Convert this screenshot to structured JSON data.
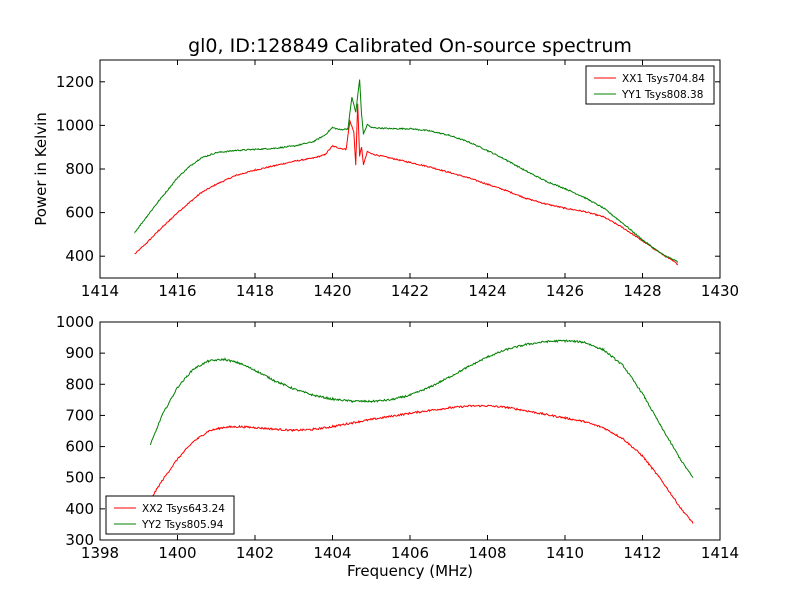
{
  "figure": {
    "title": "gl0, ID:128849 Calibrated On-source spectrum"
  },
  "chart_data": [
    {
      "type": "line",
      "title": "gl0, ID:128849 Calibrated On-source spectrum",
      "xlabel": "",
      "ylabel": "Power in Kelvin",
      "xlim": [
        1414,
        1430
      ],
      "ylim": [
        300,
        1300
      ],
      "xticks": [
        1414,
        1416,
        1418,
        1420,
        1422,
        1424,
        1426,
        1428,
        1430
      ],
      "yticks": [
        400,
        600,
        800,
        1000,
        1200
      ],
      "grid": false,
      "legend_position": "top-right",
      "series": [
        {
          "name": "XX1 Tsys704.84",
          "color": "#ff0000",
          "x": [
            1414.9,
            1415.2,
            1415.5,
            1415.8,
            1416.0,
            1416.3,
            1416.6,
            1417.0,
            1417.5,
            1418.0,
            1418.5,
            1419.0,
            1419.5,
            1419.8,
            1420.0,
            1420.2,
            1420.35,
            1420.45,
            1420.55,
            1420.6,
            1420.65,
            1420.7,
            1420.75,
            1420.8,
            1420.9,
            1421.0,
            1421.5,
            1422.0,
            1422.5,
            1423.0,
            1423.5,
            1424.0,
            1424.5,
            1425.0,
            1425.5,
            1426.0,
            1426.5,
            1427.0,
            1427.5,
            1428.0,
            1428.5,
            1428.9
          ],
          "y": [
            410,
            460,
            515,
            565,
            600,
            645,
            690,
            730,
            770,
            795,
            815,
            835,
            850,
            865,
            905,
            895,
            890,
            1020,
            970,
            820,
            1100,
            860,
            900,
            820,
            880,
            870,
            850,
            830,
            810,
            785,
            760,
            730,
            700,
            665,
            640,
            620,
            605,
            580,
            530,
            470,
            410,
            365
          ]
        },
        {
          "name": "YY1 Tsys808.38",
          "color": "#008000",
          "x": [
            1414.9,
            1415.2,
            1415.5,
            1415.8,
            1416.0,
            1416.3,
            1416.6,
            1417.0,
            1417.5,
            1418.0,
            1418.5,
            1419.0,
            1419.5,
            1419.8,
            1420.0,
            1420.2,
            1420.4,
            1420.5,
            1420.6,
            1420.7,
            1420.75,
            1420.8,
            1420.9,
            1421.0,
            1421.5,
            1422.0,
            1422.5,
            1423.0,
            1423.5,
            1424.0,
            1424.5,
            1425.0,
            1425.5,
            1426.0,
            1426.5,
            1427.0,
            1427.5,
            1428.0,
            1428.5,
            1428.9
          ],
          "y": [
            510,
            580,
            650,
            715,
            760,
            810,
            850,
            875,
            885,
            890,
            895,
            905,
            925,
            955,
            990,
            980,
            985,
            1130,
            1060,
            1210,
            1050,
            960,
            1005,
            990,
            985,
            985,
            975,
            955,
            925,
            885,
            840,
            790,
            745,
            710,
            670,
            620,
            550,
            475,
            410,
            375
          ]
        }
      ]
    },
    {
      "type": "line",
      "title": "",
      "xlabel": "Frequency (MHz)",
      "ylabel": "",
      "xlim": [
        1398,
        1414
      ],
      "ylim": [
        300,
        1000
      ],
      "xticks": [
        1398,
        1400,
        1402,
        1404,
        1406,
        1408,
        1410,
        1412,
        1414
      ],
      "yticks": [
        300,
        400,
        500,
        600,
        700,
        800,
        900,
        1000
      ],
      "grid": false,
      "legend_position": "bottom-left",
      "series": [
        {
          "name": "XX2 Tsys643.24",
          "color": "#ff0000",
          "x": [
            1399.3,
            1399.6,
            1400.0,
            1400.4,
            1400.8,
            1401.2,
            1401.6,
            1402.0,
            1402.5,
            1403.0,
            1403.5,
            1404.0,
            1404.5,
            1405.0,
            1405.5,
            1406.0,
            1406.5,
            1407.0,
            1407.5,
            1408.0,
            1408.5,
            1409.0,
            1409.5,
            1410.0,
            1410.5,
            1411.0,
            1411.5,
            1412.0,
            1412.5,
            1413.0,
            1413.3
          ],
          "y": [
            430,
            490,
            560,
            615,
            650,
            662,
            664,
            661,
            656,
            652,
            655,
            664,
            676,
            687,
            697,
            707,
            716,
            724,
            730,
            731,
            726,
            715,
            703,
            692,
            680,
            660,
            625,
            570,
            490,
            400,
            355
          ]
        },
        {
          "name": "YY2 Tsys805.94",
          "color": "#008000",
          "x": [
            1399.3,
            1399.6,
            1400.0,
            1400.4,
            1400.8,
            1401.2,
            1401.6,
            1402.0,
            1402.5,
            1403.0,
            1403.5,
            1404.0,
            1404.5,
            1405.0,
            1405.5,
            1406.0,
            1406.5,
            1407.0,
            1407.5,
            1408.0,
            1408.5,
            1409.0,
            1409.5,
            1410.0,
            1410.5,
            1411.0,
            1411.5,
            1412.0,
            1412.5,
            1413.0,
            1413.3
          ],
          "y": [
            605,
            700,
            790,
            848,
            875,
            880,
            868,
            845,
            812,
            785,
            765,
            752,
            746,
            745,
            750,
            765,
            790,
            822,
            856,
            888,
            912,
            928,
            937,
            940,
            935,
            910,
            860,
            770,
            660,
            555,
            500
          ]
        }
      ]
    }
  ]
}
